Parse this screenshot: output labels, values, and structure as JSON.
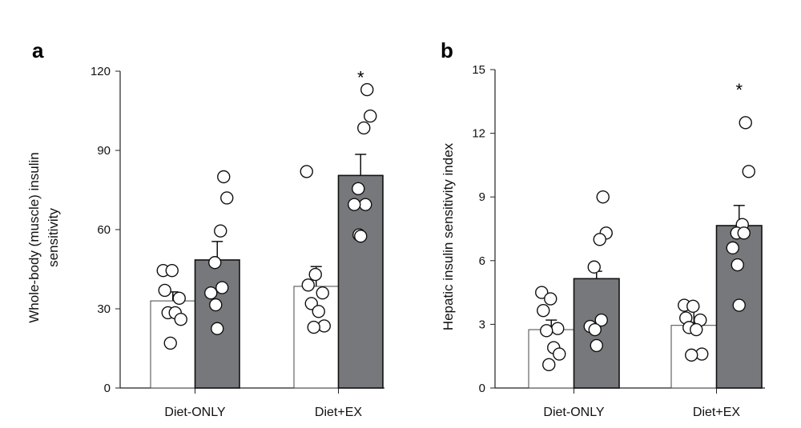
{
  "chart_data": [
    {
      "type": "bar",
      "panel_label": "a",
      "ylabel": "Whole-body (muscle) insulin sensitivity",
      "ylabel_lines": [
        "Whole-body (muscle) insulin",
        "sensitivity"
      ],
      "ylim": [
        0,
        120
      ],
      "yticks": [
        "0",
        "30",
        "60",
        "90",
        "120"
      ],
      "categories": [
        "Diet-ONLY",
        "Diet+EX"
      ],
      "series": [
        {
          "name": "white",
          "color": "#ffffff",
          "values": [
            33,
            38.5
          ],
          "sem_top": [
            36.4,
            46
          ],
          "points": [
            [
              44.5,
              44.5,
              37,
              34,
              28.5,
              28.5,
              26,
              17
            ],
            [
              82,
              43,
              39,
              36,
              32,
              29,
              23.5,
              23
            ]
          ]
        },
        {
          "name": "gray",
          "color": "#77787b",
          "values": [
            48.5,
            80.5
          ],
          "sem_top": [
            55.5,
            88.5
          ],
          "points": [
            [
              80,
              72,
              59.5,
              47.5,
              38,
              36,
              31.5,
              22.5
            ],
            [
              113,
              103,
              98.5,
              75.5,
              69.5,
              69.5,
              58,
              57.5
            ]
          ]
        }
      ],
      "annotations": [
        {
          "text": "*",
          "category": "Diet+EX",
          "series": "gray",
          "value": 119
        }
      ]
    },
    {
      "type": "bar",
      "panel_label": "b",
      "ylabel": "Hepatic insulin sensitivity index",
      "ylabel_lines": [
        "Hepatic insulin sensitivity index"
      ],
      "ylim": [
        0,
        15
      ],
      "yticks": [
        "0",
        "3",
        "6",
        "9",
        "12",
        "15"
      ],
      "categories": [
        "Diet-ONLY",
        "Diet+EX"
      ],
      "series": [
        {
          "name": "white",
          "color": "#ffffff",
          "values": [
            2.75,
            2.95
          ],
          "sem_top": [
            3.2,
            3.8
          ],
          "points": [
            [
              4.5,
              4.2,
              3.65,
              2.8,
              2.7,
              1.9,
              1.6,
              1.1
            ],
            [
              3.9,
              3.85,
              3.3,
              3.2,
              2.85,
              2.75,
              1.6,
              1.55
            ]
          ]
        },
        {
          "name": "gray",
          "color": "#77787b",
          "values": [
            5.15,
            7.65
          ],
          "sem_top": [
            5.5,
            8.6
          ],
          "points": [
            [
              9.0,
              7.3,
              7.0,
              5.7,
              3.2,
              2.9,
              2.75,
              2.0
            ],
            [
              12.5,
              10.2,
              7.7,
              7.3,
              7.3,
              6.6,
              5.8,
              3.9
            ]
          ]
        }
      ],
      "annotations": [
        {
          "text": "*",
          "category": "Diet+EX",
          "series": "gray",
          "value": 14.2
        }
      ]
    }
  ]
}
